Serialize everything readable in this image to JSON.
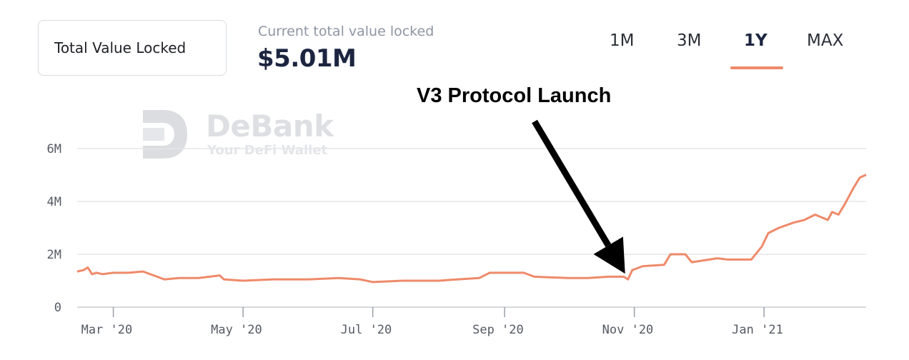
{
  "header": {
    "metric_select": "Total Value Locked",
    "current_label": "Current total value locked",
    "current_value": "$5.01M",
    "range_tabs": [
      "1M",
      "3M",
      "1Y",
      "MAX"
    ],
    "active_range": "1Y"
  },
  "watermark": {
    "name": "DeBank",
    "tagline": "Your DeFi Wallet"
  },
  "colors": {
    "line": "#ee8a6a",
    "arrow": "#000000",
    "grid": "#e3e5e8"
  },
  "chart_data": {
    "type": "line",
    "title": "",
    "xlabel": "",
    "ylabel": "",
    "ylim": [
      0,
      6000000
    ],
    "yticks": [
      0,
      2000000,
      4000000,
      6000000
    ],
    "ytick_labels": [
      "0",
      "2M",
      "4M",
      "6M"
    ],
    "xlim": [
      "2020-02-13",
      "2021-02-18"
    ],
    "xticks": [
      "2020-03-01",
      "2020-05-01",
      "2020-07-01",
      "2020-09-01",
      "2020-11-01",
      "2021-01-01"
    ],
    "xtick_labels": [
      "Mar '20",
      "May '20",
      "Jul '20",
      "Sep '20",
      "Nov '20",
      "Jan '21"
    ],
    "grid": true,
    "annotations": [
      {
        "text": "V3 Protocol Launch",
        "points_to": "2020-10-29"
      }
    ],
    "series": [
      {
        "x": [
          "2020-02-13",
          "2020-02-16",
          "2020-02-18",
          "2020-02-20",
          "2020-02-22",
          "2020-02-25",
          "2020-03-01",
          "2020-03-08",
          "2020-03-15",
          "2020-03-20",
          "2020-03-25",
          "2020-04-01",
          "2020-04-10",
          "2020-04-20",
          "2020-04-22",
          "2020-05-01",
          "2020-05-15",
          "2020-06-01",
          "2020-06-15",
          "2020-06-25",
          "2020-07-01",
          "2020-07-15",
          "2020-08-01",
          "2020-08-10",
          "2020-08-20",
          "2020-08-25",
          "2020-09-10",
          "2020-09-15",
          "2020-10-01",
          "2020-10-10",
          "2020-10-20",
          "2020-10-27",
          "2020-10-29",
          "2020-10-31",
          "2020-11-05",
          "2020-11-15",
          "2020-11-18",
          "2020-11-25",
          "2020-11-28",
          "2020-12-10",
          "2020-12-15",
          "2020-12-26",
          "2020-12-31",
          "2021-01-03",
          "2021-01-08",
          "2021-01-15",
          "2021-01-20",
          "2021-01-25",
          "2021-01-28",
          "2021-01-31",
          "2021-02-02",
          "2021-02-05",
          "2021-02-08",
          "2021-02-12",
          "2021-02-15",
          "2021-02-18"
        ],
        "y": [
          1350000,
          1400000,
          1500000,
          1250000,
          1300000,
          1250000,
          1300000,
          1300000,
          1350000,
          1200000,
          1050000,
          1100000,
          1100000,
          1200000,
          1050000,
          1000000,
          1050000,
          1050000,
          1100000,
          1050000,
          950000,
          1000000,
          1000000,
          1050000,
          1100000,
          1300000,
          1300000,
          1150000,
          1100000,
          1100000,
          1150000,
          1150000,
          1050000,
          1400000,
          1550000,
          1600000,
          2000000,
          2000000,
          1700000,
          1850000,
          1800000,
          1800000,
          2300000,
          2800000,
          3000000,
          3200000,
          3300000,
          3500000,
          3400000,
          3300000,
          3600000,
          3500000,
          3900000,
          4500000,
          4900000,
          5010000
        ]
      }
    ]
  }
}
